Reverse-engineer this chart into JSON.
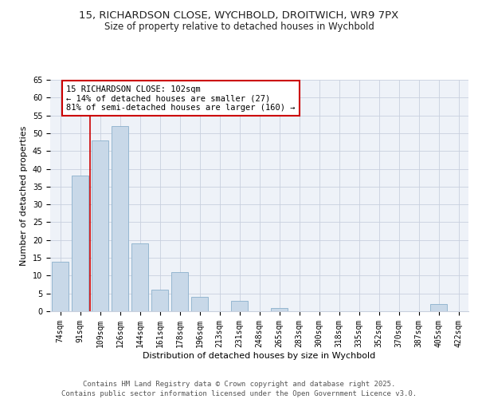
{
  "title_line1": "15, RICHARDSON CLOSE, WYCHBOLD, DROITWICH, WR9 7PX",
  "title_line2": "Size of property relative to detached houses in Wychbold",
  "xlabel": "Distribution of detached houses by size in Wychbold",
  "ylabel": "Number of detached properties",
  "categories": [
    "74sqm",
    "91sqm",
    "109sqm",
    "126sqm",
    "144sqm",
    "161sqm",
    "178sqm",
    "196sqm",
    "213sqm",
    "231sqm",
    "248sqm",
    "265sqm",
    "283sqm",
    "300sqm",
    "318sqm",
    "335sqm",
    "352sqm",
    "370sqm",
    "387sqm",
    "405sqm",
    "422sqm"
  ],
  "values": [
    14,
    38,
    48,
    52,
    19,
    6,
    11,
    4,
    0,
    3,
    0,
    1,
    0,
    0,
    0,
    0,
    0,
    0,
    0,
    2,
    0
  ],
  "bar_color": "#c8d8e8",
  "bar_edge_color": "#8ab0cc",
  "grid_color": "#c8d0de",
  "background_color": "#eef2f8",
  "vline_color": "#cc0000",
  "annotation_text": "15 RICHARDSON CLOSE: 102sqm\n← 14% of detached houses are smaller (27)\n81% of semi-detached houses are larger (160) →",
  "annotation_box_color": "#ffffff",
  "annotation_box_edge": "#cc0000",
  "ylim": [
    0,
    65
  ],
  "yticks": [
    0,
    5,
    10,
    15,
    20,
    25,
    30,
    35,
    40,
    45,
    50,
    55,
    60,
    65
  ],
  "footer_text": "Contains HM Land Registry data © Crown copyright and database right 2025.\nContains public sector information licensed under the Open Government Licence v3.0.",
  "title_fontsize": 9.5,
  "subtitle_fontsize": 8.5,
  "axis_label_fontsize": 8,
  "tick_fontsize": 7,
  "annotation_fontsize": 7.5,
  "footer_fontsize": 6.5
}
